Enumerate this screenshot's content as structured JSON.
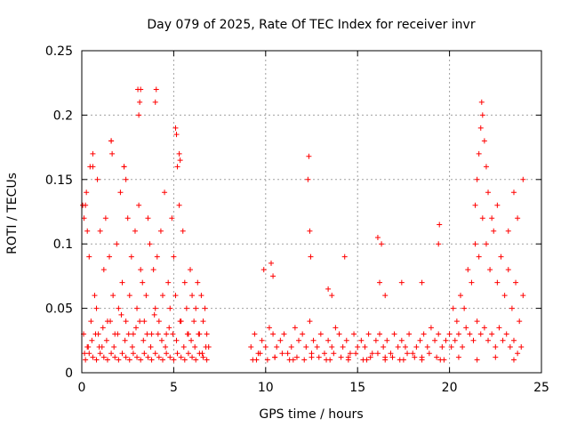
{
  "chart_data": {
    "type": "scatter",
    "title": "Day 079 of 2025, Rate Of TEC Index for receiver invr",
    "xlabel": "GPS time / hours",
    "ylabel": "ROTI / TECUs",
    "xlim": [
      0,
      25
    ],
    "ylim": [
      0,
      0.25
    ],
    "x_ticks": [
      0,
      5,
      10,
      15,
      20,
      25
    ],
    "y_ticks": [
      0,
      0.05,
      0.1,
      0.15,
      0.2,
      0.25
    ],
    "x_tick_labels": [
      "0",
      "5",
      "10",
      "15",
      "20",
      "25"
    ],
    "y_tick_labels": [
      "0",
      "0.05",
      "0.1",
      "0.15",
      "0.2",
      "0.25"
    ],
    "grid": true,
    "marker": "plus",
    "color": "#ff0000",
    "series": [
      {
        "values_x": [
          0.1,
          0.2,
          0.3,
          0.4,
          0.5,
          0.6,
          0.7,
          0.8,
          0.9,
          1.0,
          1.1,
          1.2,
          1.3,
          1.4,
          1.5,
          1.6,
          1.7,
          1.8,
          1.9,
          2.0,
          2.1,
          2.2,
          2.3,
          2.4,
          2.5,
          2.6,
          2.7,
          2.8,
          2.9,
          3.0,
          3.1,
          3.2,
          3.3,
          3.4,
          3.5,
          3.6,
          3.7,
          3.8,
          3.9,
          4.0,
          4.1,
          4.2,
          4.3,
          4.4,
          4.5,
          4.6,
          4.7,
          4.8,
          4.9,
          5.0,
          5.1,
          5.2,
          5.3,
          5.4,
          5.5,
          5.6,
          5.7,
          5.8,
          5.9,
          6.0,
          6.1,
          6.2,
          6.3,
          6.4,
          6.5,
          6.6,
          6.7,
          6.8,
          6.9,
          0.15,
          0.35,
          0.55,
          0.75,
          0.95,
          1.15,
          1.35,
          1.55,
          1.75,
          1.95,
          2.15,
          2.35,
          2.55,
          2.75,
          2.95,
          3.15,
          3.35,
          3.55,
          3.75,
          3.95,
          4.15,
          4.35,
          4.55,
          4.75,
          4.95,
          5.15,
          5.35,
          5.55,
          5.75,
          5.95,
          6.15,
          6.35,
          6.55,
          6.75,
          0.05,
          0.12,
          0.25,
          0.3,
          0.45,
          0.6,
          0.85,
          1.6,
          1.65,
          2.3,
          2.4,
          3.05,
          3.1,
          3.15,
          3.2,
          4.0,
          4.05,
          5.1,
          5.15,
          5.3,
          5.35,
          9.2,
          9.4,
          9.6,
          9.8,
          10.0,
          10.2,
          10.4,
          10.6,
          10.8,
          11.0,
          11.2,
          11.4,
          11.6,
          11.8,
          12.0,
          12.2,
          12.4,
          12.6,
          12.8,
          13.0,
          13.2,
          13.4,
          13.6,
          13.8,
          14.0,
          14.2,
          14.4,
          14.6,
          14.8,
          15.0,
          15.2,
          15.4,
          15.6,
          15.8,
          16.0,
          16.2,
          16.4,
          16.6,
          16.8,
          17.0,
          17.2,
          17.4,
          17.6,
          17.8,
          18.0,
          18.2,
          18.4,
          18.6,
          18.8,
          19.0,
          19.2,
          19.4,
          19.6,
          19.8,
          9.3,
          9.7,
          10.1,
          10.5,
          10.9,
          11.3,
          11.7,
          12.1,
          12.5,
          12.9,
          13.3,
          13.7,
          14.1,
          14.5,
          14.9,
          15.3,
          15.7,
          16.1,
          16.5,
          16.9,
          17.3,
          17.7,
          18.1,
          18.5,
          18.9,
          19.3,
          19.7,
          9.9,
          10.3,
          10.4,
          12.3,
          12.35,
          12.4,
          12.45,
          13.4,
          13.6,
          14.3,
          16.1,
          16.2,
          16.3,
          16.5,
          17.4,
          18.5,
          19.4,
          19.45,
          20.0,
          20.2,
          20.4,
          20.6,
          20.8,
          21.0,
          21.2,
          21.4,
          21.6,
          21.8,
          22.0,
          22.2,
          22.4,
          22.6,
          22.8,
          23.0,
          23.2,
          23.4,
          23.6,
          23.8,
          24.0,
          20.1,
          20.3,
          20.5,
          20.7,
          20.9,
          21.1,
          21.3,
          21.5,
          21.7,
          21.9,
          22.1,
          22.3,
          22.5,
          22.7,
          22.9,
          23.1,
          23.3,
          23.5,
          23.7,
          23.9,
          21.4,
          21.5,
          21.6,
          21.7,
          21.75,
          21.8,
          21.9,
          22.0,
          22.1,
          22.3,
          22.6,
          23.2,
          23.5,
          23.7,
          24.0,
          0.2,
          0.4,
          0.6,
          0.8,
          1.0,
          1.2,
          1.4,
          1.6,
          1.8,
          2.0,
          2.2,
          2.4,
          2.6,
          2.8,
          3.0,
          3.2,
          3.4,
          3.6,
          3.8,
          4.0,
          4.2,
          4.4,
          4.6,
          4.8,
          5.0,
          5.2,
          5.4,
          5.6,
          5.8,
          6.0,
          6.2,
          6.4,
          6.6,
          6.8,
          9.5,
          10.5,
          11.5,
          12.5,
          13.5,
          14.5,
          15.5,
          16.5,
          17.5,
          18.5,
          19.5,
          20.5,
          21.5,
          22.5,
          23.5
        ],
        "values_y": [
          0.03,
          0.13,
          0.02,
          0.09,
          0.04,
          0.16,
          0.06,
          0.05,
          0.03,
          0.11,
          0.02,
          0.08,
          0.12,
          0.04,
          0.09,
          0.18,
          0.06,
          0.03,
          0.1,
          0.05,
          0.14,
          0.07,
          0.16,
          0.04,
          0.12,
          0.06,
          0.09,
          0.03,
          0.11,
          0.05,
          0.13,
          0.08,
          0.07,
          0.04,
          0.06,
          0.12,
          0.1,
          0.03,
          0.08,
          0.05,
          0.09,
          0.04,
          0.11,
          0.06,
          0.14,
          0.03,
          0.07,
          0.05,
          0.12,
          0.09,
          0.06,
          0.16,
          0.13,
          0.04,
          0.11,
          0.07,
          0.05,
          0.03,
          0.08,
          0.06,
          0.04,
          0.05,
          0.07,
          0.03,
          0.06,
          0.04,
          0.05,
          0.03,
          0.02,
          0.015,
          0.02,
          0.025,
          0.03,
          0.02,
          0.035,
          0.025,
          0.04,
          0.02,
          0.03,
          0.045,
          0.025,
          0.03,
          0.02,
          0.035,
          0.04,
          0.025,
          0.03,
          0.02,
          0.045,
          0.03,
          0.025,
          0.02,
          0.035,
          0.03,
          0.025,
          0.04,
          0.02,
          0.03,
          0.025,
          0.02,
          0.03,
          0.015,
          0.02,
          0.13,
          0.12,
          0.14,
          0.11,
          0.16,
          0.17,
          0.15,
          0.18,
          0.17,
          0.16,
          0.15,
          0.22,
          0.2,
          0.21,
          0.22,
          0.21,
          0.22,
          0.19,
          0.185,
          0.17,
          0.165,
          0.02,
          0.03,
          0.015,
          0.025,
          0.02,
          0.035,
          0.03,
          0.02,
          0.025,
          0.03,
          0.015,
          0.02,
          0.035,
          0.025,
          0.03,
          0.02,
          0.04,
          0.025,
          0.02,
          0.03,
          0.015,
          0.025,
          0.02,
          0.035,
          0.03,
          0.02,
          0.025,
          0.015,
          0.03,
          0.02,
          0.025,
          0.02,
          0.03,
          0.015,
          0.025,
          0.03,
          0.02,
          0.025,
          0.015,
          0.03,
          0.02,
          0.025,
          0.02,
          0.03,
          0.015,
          0.02,
          0.025,
          0.03,
          0.02,
          0.035,
          0.025,
          0.03,
          0.02,
          0.025,
          0.01,
          0.015,
          0.01,
          0.012,
          0.015,
          0.01,
          0.012,
          0.01,
          0.015,
          0.012,
          0.01,
          0.015,
          0.012,
          0.01,
          0.015,
          0.01,
          0.012,
          0.015,
          0.01,
          0.012,
          0.01,
          0.015,
          0.012,
          0.01,
          0.015,
          0.012,
          0.01,
          0.08,
          0.085,
          0.075,
          0.15,
          0.168,
          0.11,
          0.09,
          0.065,
          0.06,
          0.09,
          0.105,
          0.07,
          0.1,
          0.06,
          0.07,
          0.07,
          0.1,
          0.115,
          0.03,
          0.05,
          0.04,
          0.06,
          0.05,
          0.08,
          0.07,
          0.1,
          0.09,
          0.12,
          0.1,
          0.08,
          0.11,
          0.07,
          0.09,
          0.06,
          0.08,
          0.05,
          0.07,
          0.04,
          0.06,
          0.02,
          0.025,
          0.03,
          0.02,
          0.035,
          0.03,
          0.025,
          0.04,
          0.03,
          0.035,
          0.025,
          0.03,
          0.02,
          0.035,
          0.025,
          0.03,
          0.02,
          0.025,
          0.015,
          0.02,
          0.13,
          0.15,
          0.17,
          0.19,
          0.21,
          0.2,
          0.18,
          0.16,
          0.14,
          0.12,
          0.13,
          0.11,
          0.14,
          0.12,
          0.15,
          0.01,
          0.015,
          0.012,
          0.01,
          0.015,
          0.012,
          0.01,
          0.015,
          0.012,
          0.01,
          0.015,
          0.012,
          0.01,
          0.015,
          0.012,
          0.01,
          0.015,
          0.012,
          0.01,
          0.015,
          0.012,
          0.01,
          0.015,
          0.012,
          0.01,
          0.015,
          0.012,
          0.01,
          0.015,
          0.012,
          0.01,
          0.015,
          0.012,
          0.01,
          0.01,
          0.012,
          0.01,
          0.012,
          0.01,
          0.012,
          0.01,
          0.012,
          0.01,
          0.012,
          0.01,
          0.012,
          0.01,
          0.012,
          0.01
        ]
      }
    ]
  }
}
